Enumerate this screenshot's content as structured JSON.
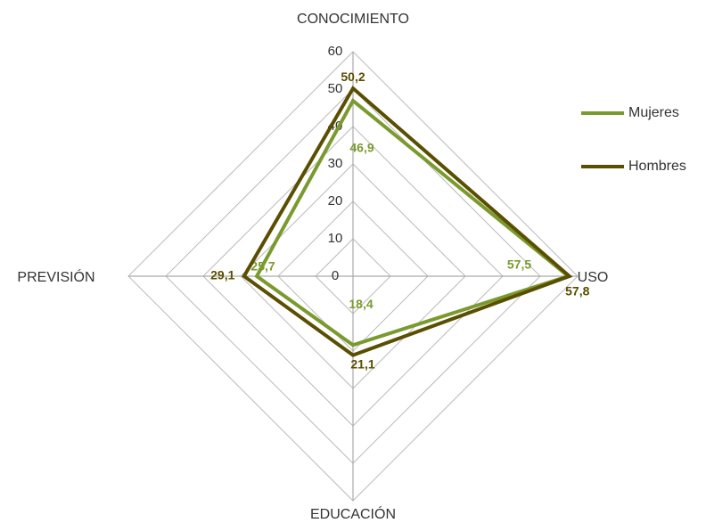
{
  "chart_data": {
    "type": "radar",
    "categories": [
      "CONOCIMIENTO",
      "USO",
      "EDUCACIÓN",
      "PREVISIÓN"
    ],
    "series": [
      {
        "name": "Mujeres",
        "color": "#7a9a2e",
        "values": [
          46.9,
          57.5,
          18.4,
          25.7
        ],
        "value_labels": [
          "46,9",
          "57,5",
          "18,4",
          "25,7"
        ]
      },
      {
        "name": "Hombres",
        "color": "#5a4e00",
        "values": [
          50.2,
          57.8,
          21.1,
          29.1
        ],
        "value_labels": [
          "50,2",
          "57,8",
          "21,1",
          "29,1"
        ]
      }
    ],
    "ylim": [
      0,
      60
    ],
    "yticks": [
      0,
      10,
      20,
      30,
      40,
      50,
      60
    ],
    "grid": true,
    "legend": "right"
  }
}
